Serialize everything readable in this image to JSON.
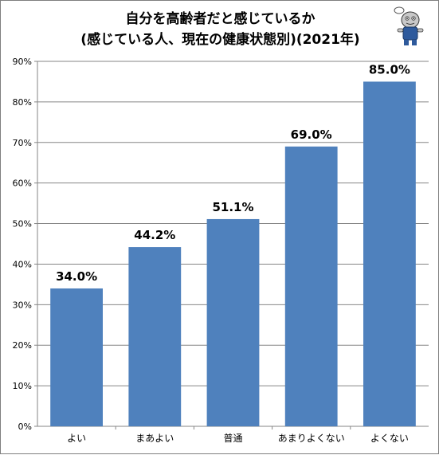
{
  "chart_data": {
    "type": "bar",
    "title": "自分を高齢者だと感じているか",
    "subtitle": "(感じている人、現在の健康状態別)(2021年)",
    "categories": [
      "よい",
      "まあよい",
      "普通",
      "あまりよくない",
      "よくない"
    ],
    "values": [
      34.0,
      44.2,
      51.1,
      69.0,
      85.0
    ],
    "data_labels": [
      "34.0%",
      "44.2%",
      "51.1%",
      "69.0%",
      "85.0%"
    ],
    "yticks": [
      "0%",
      "10%",
      "20%",
      "30%",
      "40%",
      "50%",
      "60%",
      "70%",
      "80%",
      "90%"
    ],
    "ylim": [
      0,
      90
    ],
    "xlabel": "",
    "ylabel": "",
    "grid": true,
    "bar_color": "#4f81bd",
    "grid_color": "#868686"
  },
  "mascot": {
    "icon": "mascot-character-icon"
  }
}
